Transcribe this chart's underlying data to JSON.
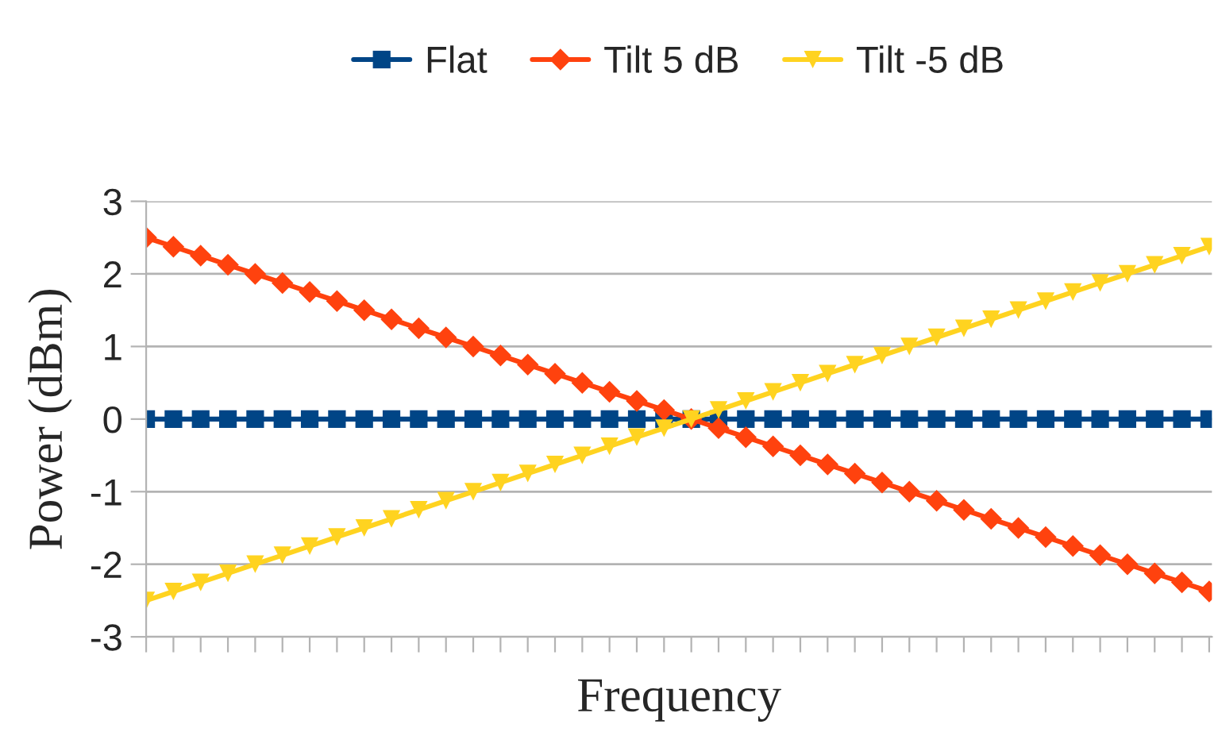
{
  "chart_data": {
    "type": "line",
    "xlabel": "Frequency",
    "ylabel": "Power (dBm)",
    "categories": [
      null,
      null,
      null,
      null,
      null,
      null,
      null,
      null,
      null,
      null,
      null,
      null,
      null,
      null,
      null,
      null,
      null,
      null,
      null,
      null,
      null,
      null,
      null,
      null,
      null,
      null,
      null,
      null,
      null,
      null,
      null,
      null,
      null,
      null,
      null,
      null,
      null,
      null,
      null,
      null
    ],
    "series": [
      {
        "name": "Flat",
        "color": "#004586",
        "marker": "square",
        "values": [
          0,
          0,
          0,
          0,
          0,
          0,
          0,
          0,
          0,
          0,
          0,
          0,
          0,
          0,
          0,
          0,
          0,
          0,
          0,
          0,
          0,
          0,
          0,
          0,
          0,
          0,
          0,
          0,
          0,
          0,
          0,
          0,
          0,
          0,
          0,
          0,
          0,
          0,
          0,
          0
        ]
      },
      {
        "name": "Tilt 5 dB",
        "color": "#ff420e",
        "marker": "diamond",
        "values": [
          2.5,
          2.375,
          2.25,
          2.125,
          2,
          1.875,
          1.75,
          1.625,
          1.5,
          1.375,
          1.25,
          1.125,
          1,
          0.875,
          0.75,
          0.625,
          0.5,
          0.375,
          0.25,
          0.125,
          0,
          -0.125,
          -0.25,
          -0.375,
          -0.5,
          -0.625,
          -0.75,
          -0.875,
          -1,
          -1.125,
          -1.25,
          -1.375,
          -1.5,
          -1.625,
          -1.75,
          -1.875,
          -2,
          -2.125,
          -2.25,
          -2.375
        ]
      },
      {
        "name": "Tilt -5 dB",
        "color": "#ffd320",
        "marker": "triangle",
        "values": [
          -2.5,
          -2.375,
          -2.25,
          -2.125,
          -2,
          -1.875,
          -1.75,
          -1.625,
          -1.5,
          -1.375,
          -1.25,
          -1.125,
          -1,
          -0.875,
          -0.75,
          -0.625,
          -0.5,
          -0.375,
          -0.25,
          -0.125,
          0,
          0.125,
          0.25,
          0.375,
          0.5,
          0.625,
          0.75,
          0.875,
          1,
          1.125,
          1.25,
          1.375,
          1.5,
          1.625,
          1.75,
          1.875,
          2,
          2.125,
          2.25,
          2.375
        ]
      }
    ],
    "ylim": [
      -3,
      3
    ],
    "yticks": [
      -3,
      -2,
      -1,
      0,
      1,
      2,
      3
    ],
    "grid": "y",
    "legend": "top",
    "line_style": "solid"
  }
}
